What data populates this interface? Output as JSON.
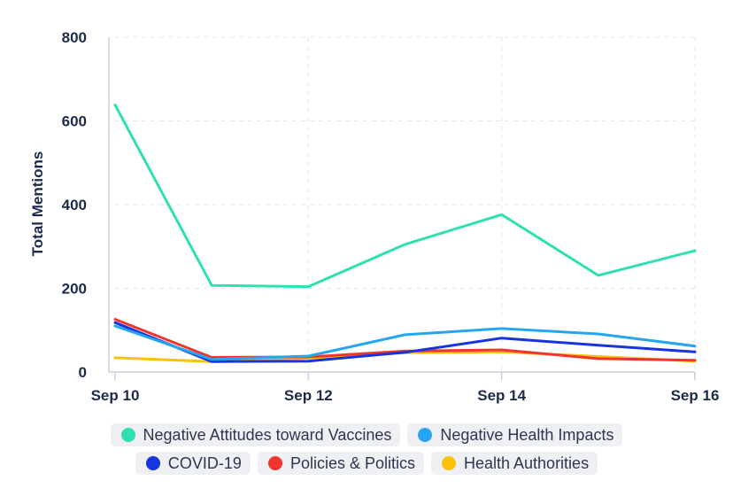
{
  "chart_data": {
    "type": "line",
    "xlabel": "",
    "ylabel": "Total Mentions",
    "ylim": [
      0,
      800
    ],
    "yticks": [
      "0",
      "200",
      "400",
      "600",
      "800"
    ],
    "x": [
      "Sep 10",
      "Sep 11",
      "Sep 12",
      "Sep 13",
      "Sep 14",
      "Sep 15",
      "Sep 16"
    ],
    "xticks": [
      "Sep 10",
      "Sep 12",
      "Sep 14",
      "Sep 16"
    ],
    "grid": true,
    "legend_position": "bottom",
    "series": [
      {
        "name": "Negative Attitudes toward Vaccines",
        "color": "#2ee0b0",
        "values": [
          638,
          207,
          204,
          305,
          376,
          231,
          290
        ]
      },
      {
        "name": "Negative Health Impacts",
        "color": "#26a6f0",
        "values": [
          110,
          30,
          38,
          89,
          104,
          91,
          62
        ]
      },
      {
        "name": "COVID-19",
        "color": "#1634e0",
        "values": [
          118,
          25,
          26,
          47,
          81,
          64,
          48
        ]
      },
      {
        "name": "Policies & Politics",
        "color": "#f0362e",
        "values": [
          126,
          35,
          36,
          50,
          53,
          32,
          28
        ]
      },
      {
        "name": "Health Authorities",
        "color": "#fcc10a",
        "values": [
          34,
          25,
          33,
          46,
          48,
          37,
          26
        ]
      }
    ]
  }
}
